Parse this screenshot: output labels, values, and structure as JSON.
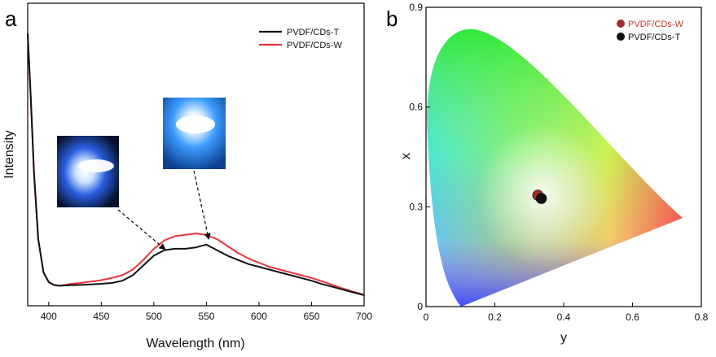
{
  "panels": {
    "a": {
      "label": "a",
      "xlabel": "Wavelength (nm)",
      "ylabel": "Intensity",
      "xlim": [
        380,
        700
      ],
      "xticks": [
        "400",
        "450",
        "500",
        "550",
        "600",
        "650",
        "700"
      ],
      "legend_position": "top-right",
      "legend": [
        "PVDF/CDs-T",
        "PVDF/CDs-W"
      ]
    },
    "b": {
      "label": "b",
      "xlabel": "y",
      "ylabel": "x",
      "xticks": [
        "0",
        "0.2",
        "0.4",
        "0.6",
        "0.8"
      ],
      "yticks": [
        "0",
        "0.3",
        "0.6",
        "0.9"
      ],
      "legend_position": "top-right",
      "legend": [
        "PVDF/CDs-W",
        "PVDF/CDs-T"
      ]
    }
  },
  "chart_data": [
    {
      "type": "line",
      "xlabel": "Wavelength (nm)",
      "ylabel": "Intensity",
      "xlim": [
        380,
        700
      ],
      "ylim": [
        0,
        1
      ],
      "grid": false,
      "legend": "top-right",
      "x": [
        380,
        383,
        386,
        390,
        395,
        400,
        405,
        410,
        420,
        430,
        440,
        450,
        460,
        470,
        480,
        490,
        500,
        510,
        520,
        530,
        540,
        550,
        560,
        570,
        580,
        590,
        600,
        610,
        620,
        630,
        640,
        650,
        660,
        670,
        680,
        690,
        700
      ],
      "series": [
        {
          "name": "PVDF/CDs-T",
          "color": "#111111",
          "values": [
            0.98,
            0.74,
            0.48,
            0.24,
            0.12,
            0.085,
            0.075,
            0.072,
            0.074,
            0.075,
            0.077,
            0.079,
            0.082,
            0.09,
            0.11,
            0.145,
            0.18,
            0.2,
            0.205,
            0.205,
            0.21,
            0.22,
            0.2,
            0.18,
            0.165,
            0.15,
            0.14,
            0.13,
            0.12,
            0.11,
            0.1,
            0.09,
            0.078,
            0.068,
            0.058,
            0.048,
            0.038
          ]
        },
        {
          "name": "PVDF/CDs-W",
          "color": "#e8333d",
          "values": [
            0.98,
            0.74,
            0.48,
            0.24,
            0.12,
            0.085,
            0.075,
            0.072,
            0.078,
            0.082,
            0.087,
            0.092,
            0.1,
            0.11,
            0.13,
            0.165,
            0.205,
            0.235,
            0.25,
            0.255,
            0.26,
            0.255,
            0.24,
            0.215,
            0.19,
            0.17,
            0.155,
            0.14,
            0.13,
            0.12,
            0.11,
            0.1,
            0.088,
            0.075,
            0.062,
            0.05,
            0.04
          ]
        }
      ]
    },
    {
      "type": "scatter",
      "title": "",
      "xlabel": "y",
      "ylabel": "x",
      "xlim": [
        0,
        0.8
      ],
      "ylim": [
        0,
        0.9
      ],
      "grid": false,
      "legend": "top-right",
      "series": [
        {
          "name": "PVDF/CDs-W",
          "color": "#a52a2a",
          "points": [
            [
              0.325,
              0.335
            ]
          ]
        },
        {
          "name": "PVDF/CDs-T",
          "color": "#111111",
          "points": [
            [
              0.335,
              0.325
            ]
          ]
        }
      ]
    }
  ]
}
